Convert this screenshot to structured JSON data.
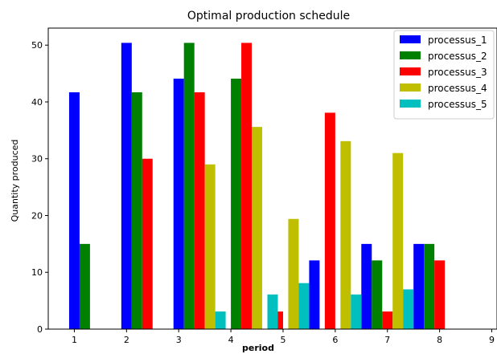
{
  "chart_data": {
    "type": "bar",
    "title": "Optimal production schedule",
    "xlabel": "period",
    "ylabel": "Quantity produced",
    "x_ticks": [
      1,
      2,
      3,
      4,
      5,
      6,
      7,
      8,
      9
    ],
    "y_ticks": [
      0,
      10,
      20,
      30,
      40,
      50
    ],
    "xlim": [
      0.5,
      9.1
    ],
    "ylim": [
      0,
      53
    ],
    "legend_position": "top-right",
    "bar_width": 0.2,
    "series": [
      {
        "name": "processus_1",
        "color": "#0000ff",
        "points": [
          [
            1,
            41.7
          ],
          [
            2,
            50.4
          ],
          [
            3,
            44.1
          ],
          [
            5.6,
            12.1
          ],
          [
            6.6,
            15.0
          ],
          [
            7.6,
            15.0
          ]
        ]
      },
      {
        "name": "processus_2",
        "color": "#008000",
        "points": [
          [
            1.2,
            15.0
          ],
          [
            2.2,
            41.7
          ],
          [
            3.2,
            50.4
          ],
          [
            4.1,
            44.1
          ],
          [
            6.8,
            12.1
          ],
          [
            7.8,
            15.0
          ]
        ]
      },
      {
        "name": "processus_3",
        "color": "#ff0000",
        "points": [
          [
            2.4,
            30.0
          ],
          [
            3.4,
            41.7
          ],
          [
            4.3,
            50.4
          ],
          [
            4.9,
            3.1
          ],
          [
            5.9,
            38.1
          ],
          [
            7.0,
            3.1
          ],
          [
            8.0,
            12.1
          ]
        ]
      },
      {
        "name": "processus_4",
        "color": "#bfbf00",
        "points": [
          [
            3.6,
            29.0
          ],
          [
            4.5,
            35.6
          ],
          [
            5.2,
            19.4
          ],
          [
            6.2,
            33.1
          ],
          [
            7.2,
            31.0
          ]
        ]
      },
      {
        "name": "processus_5",
        "color": "#00bfbf",
        "points": [
          [
            3.8,
            3.1
          ],
          [
            4.8,
            6.1
          ],
          [
            5.4,
            8.1
          ],
          [
            6.4,
            6.1
          ],
          [
            7.4,
            7.0
          ]
        ]
      }
    ]
  }
}
